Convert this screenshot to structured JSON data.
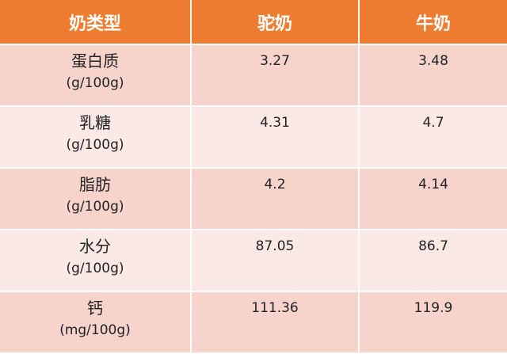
{
  "header": [
    "奶类型",
    "驼奶",
    "牛奶"
  ],
  "rows": [
    {
      "name": "蛋白质",
      "unit": "(g/100g)",
      "camel": "3.27",
      "cow": "3.48"
    },
    {
      "name": "乳糖",
      "unit": "(g/100g)",
      "camel": "4.31",
      "cow": "4.7"
    },
    {
      "name": "脂肪",
      "unit": "(g/100g)",
      "camel": "4.2",
      "cow": "4.14"
    },
    {
      "name": "水分",
      "unit": "(g/100g)",
      "camel": "87.05",
      "cow": "86.7"
    },
    {
      "name": "钙",
      "unit": "(mg/100g)",
      "camel": "111.36",
      "cow": "119.9"
    }
  ],
  "colors": {
    "header": "#EE7D31",
    "row_dark": "#F6D4CC",
    "row_light": "#FBE9E5"
  }
}
